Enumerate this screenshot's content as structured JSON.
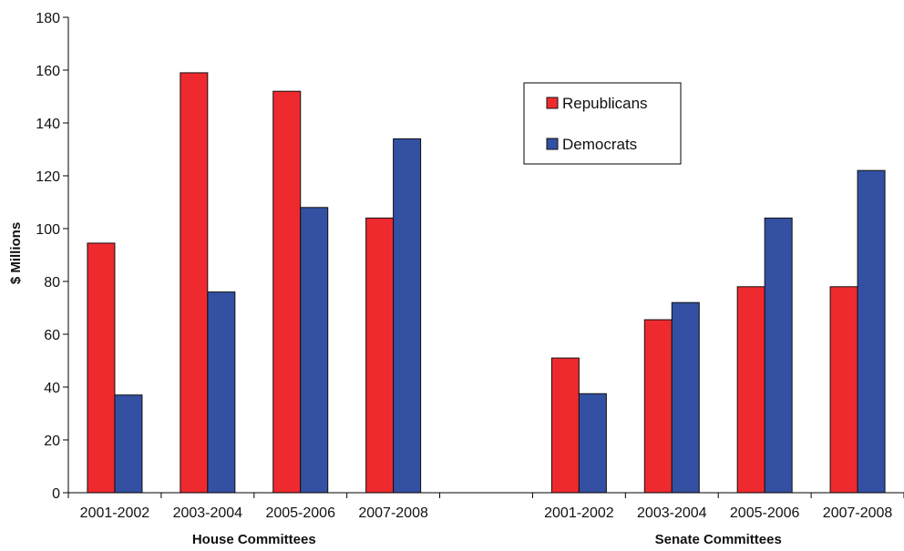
{
  "chart_data": {
    "type": "bar",
    "ylabel": "$ Millions",
    "ylim": [
      0,
      180
    ],
    "yticks": [
      "0",
      "20",
      "40",
      "60",
      "80",
      "100",
      "120",
      "140",
      "160",
      "180"
    ],
    "grid": false,
    "legend_position": "top-center",
    "groups": [
      {
        "label": "House Committees",
        "categories": [
          "2001-2002",
          "2003-2004",
          "2005-2006",
          "2007-2008"
        ],
        "series": [
          {
            "name": "Republicans",
            "values": [
              94.5,
              159,
              152,
              104
            ]
          },
          {
            "name": "Democrats",
            "values": [
              37,
              76,
              108,
              134
            ]
          }
        ]
      },
      {
        "label": "Senate Committees",
        "categories": [
          "2001-2002",
          "2003-2004",
          "2005-2006",
          "2007-2008"
        ],
        "series": [
          {
            "name": "Republicans",
            "values": [
              51,
              65.5,
              78,
              78
            ]
          },
          {
            "name": "Democrats",
            "values": [
              37.5,
              72,
              104,
              122
            ]
          }
        ]
      }
    ],
    "legend": [
      "Republicans",
      "Democrats"
    ],
    "colors": {
      "Republicans": "#ee2a2e",
      "Democrats": "#3350a2"
    }
  }
}
